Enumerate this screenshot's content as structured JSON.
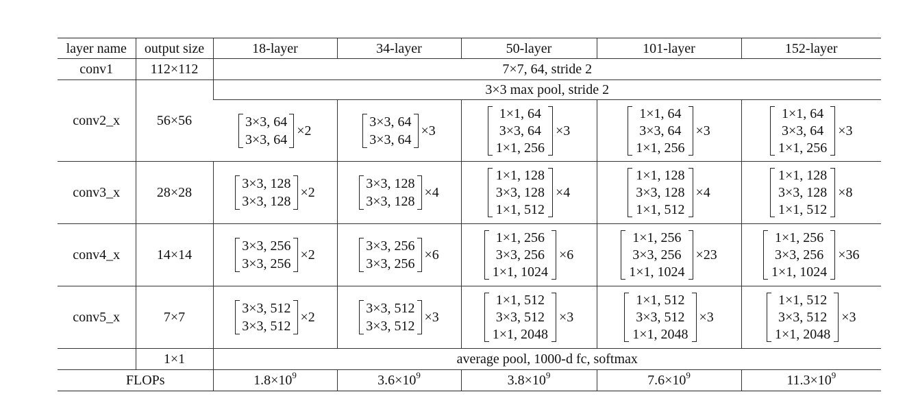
{
  "table": {
    "headers": [
      "layer name",
      "output size",
      "18-layer",
      "34-layer",
      "50-layer",
      "101-layer",
      "152-layer"
    ],
    "conv1": {
      "name": "conv1",
      "size": "112×112",
      "spec": "7×7, 64, stride 2"
    },
    "pool": "3×3 max pool, stride 2",
    "stages": [
      {
        "name": "conv2_x",
        "size": "56×56",
        "cells": [
          {
            "lines": [
              "3×3, 64",
              "3×3, 64"
            ],
            "mult": "×2"
          },
          {
            "lines": [
              "3×3, 64",
              "3×3, 64"
            ],
            "mult": "×3"
          },
          {
            "lines": [
              "1×1, 64",
              "3×3, 64",
              "1×1, 256"
            ],
            "mult": "×3"
          },
          {
            "lines": [
              "1×1, 64",
              "3×3, 64",
              "1×1, 256"
            ],
            "mult": "×3"
          },
          {
            "lines": [
              "1×1, 64",
              "3×3, 64",
              "1×1, 256"
            ],
            "mult": "×3"
          }
        ]
      },
      {
        "name": "conv3_x",
        "size": "28×28",
        "cells": [
          {
            "lines": [
              "3×3, 128",
              "3×3, 128"
            ],
            "mult": "×2"
          },
          {
            "lines": [
              "3×3, 128",
              "3×3, 128"
            ],
            "mult": "×4"
          },
          {
            "lines": [
              "1×1, 128",
              "3×3, 128",
              "1×1, 512"
            ],
            "mult": "×4"
          },
          {
            "lines": [
              "1×1, 128",
              "3×3, 128",
              "1×1, 512"
            ],
            "mult": "×4"
          },
          {
            "lines": [
              "1×1, 128",
              "3×3, 128",
              "1×1, 512"
            ],
            "mult": "×8"
          }
        ]
      },
      {
        "name": "conv4_x",
        "size": "14×14",
        "cells": [
          {
            "lines": [
              "3×3, 256",
              "3×3, 256"
            ],
            "mult": "×2"
          },
          {
            "lines": [
              "3×3, 256",
              "3×3, 256"
            ],
            "mult": "×6"
          },
          {
            "lines": [
              "1×1, 256",
              "3×3, 256",
              "1×1, 1024"
            ],
            "mult": "×6"
          },
          {
            "lines": [
              "1×1, 256",
              "3×3, 256",
              "1×1, 1024"
            ],
            "mult": "×23"
          },
          {
            "lines": [
              "1×1, 256",
              "3×3, 256",
              "1×1, 1024"
            ],
            "mult": "×36"
          }
        ]
      },
      {
        "name": "conv5_x",
        "size": "7×7",
        "cells": [
          {
            "lines": [
              "3×3, 512",
              "3×3, 512"
            ],
            "mult": "×2"
          },
          {
            "lines": [
              "3×3, 512",
              "3×3, 512"
            ],
            "mult": "×3"
          },
          {
            "lines": [
              "1×1, 512",
              "3×3, 512",
              "1×1, 2048"
            ],
            "mult": "×3"
          },
          {
            "lines": [
              "1×1, 512",
              "3×3, 512",
              "1×1, 2048"
            ],
            "mult": "×3"
          },
          {
            "lines": [
              "1×1, 512",
              "3×3, 512",
              "1×1, 2048"
            ],
            "mult": "×3"
          }
        ]
      }
    ],
    "final": {
      "size": "1×1",
      "spec": "average pool, 1000-d fc, softmax"
    },
    "flops": {
      "label": "FLOPs",
      "values": [
        {
          "base": "1.8×10",
          "exp": "9"
        },
        {
          "base": "3.6×10",
          "exp": "9"
        },
        {
          "base": "3.8×10",
          "exp": "9"
        },
        {
          "base": "7.6×10",
          "exp": "9"
        },
        {
          "base": "11.3×10",
          "exp": "9"
        }
      ]
    }
  }
}
